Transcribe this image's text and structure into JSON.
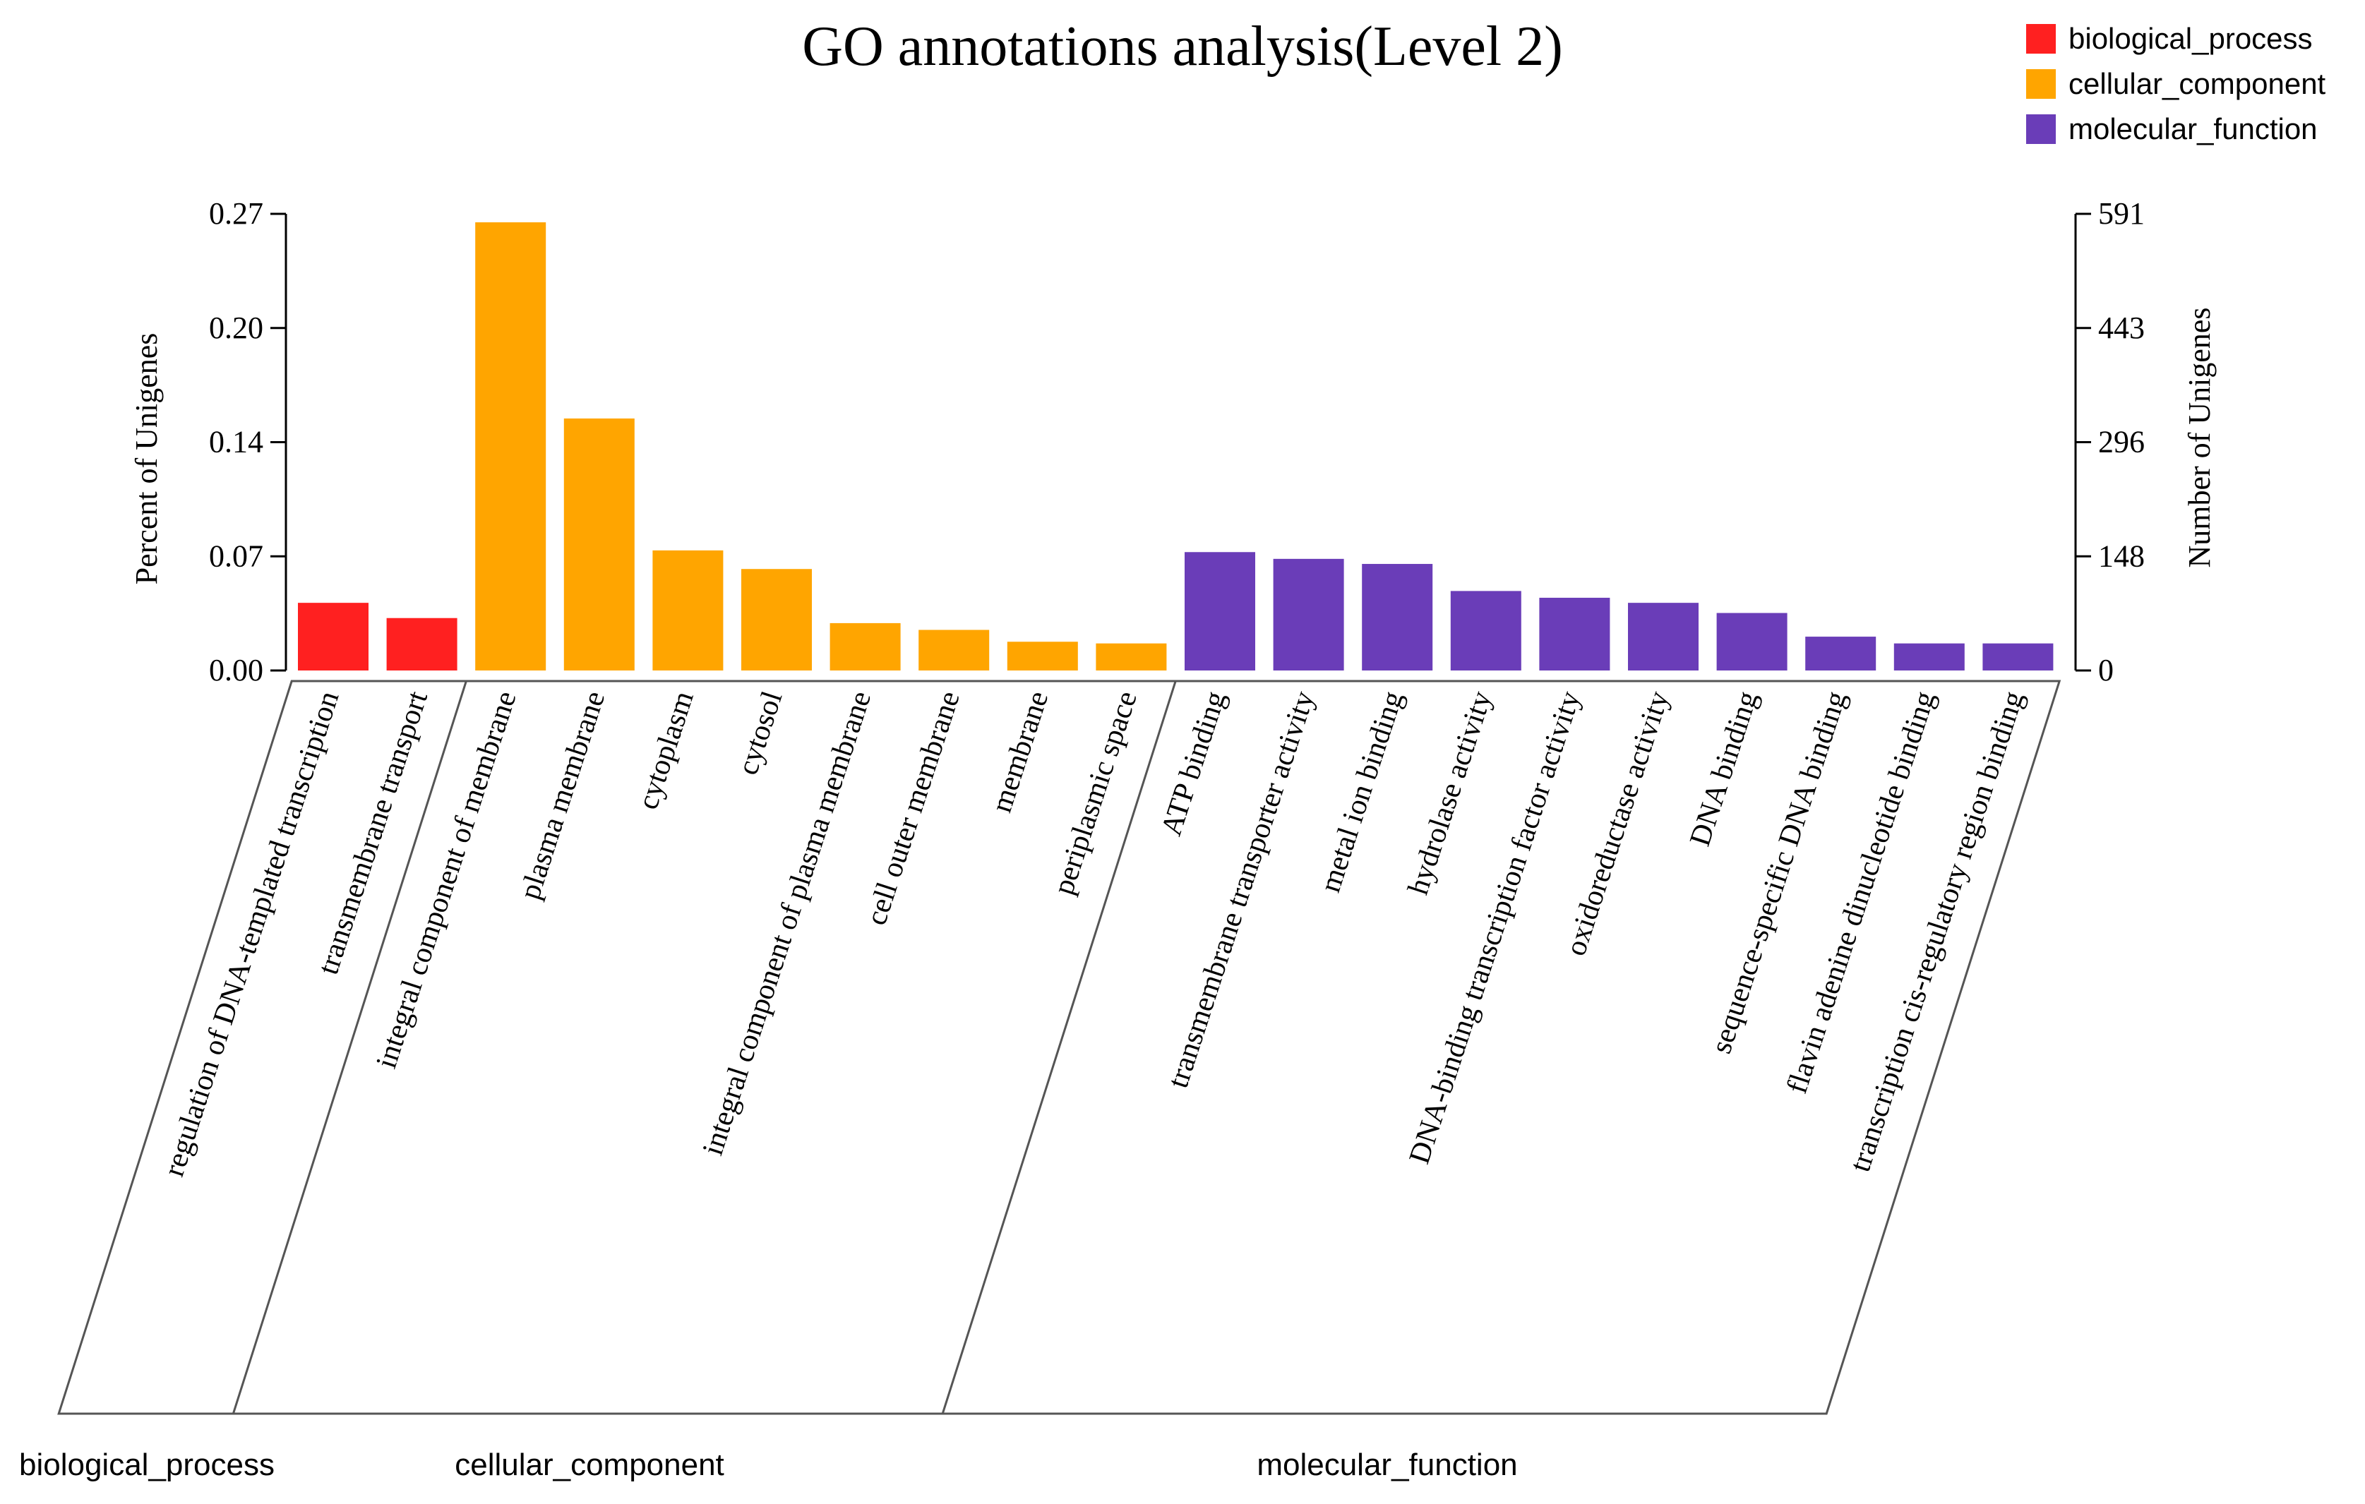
{
  "chart_data": {
    "type": "bar",
    "title": "GO annotations analysis(Level 2)",
    "ylabel_left": "Percent of Unigenes",
    "ylabel_right": "Number of Unigenes",
    "left_ticks": [
      "0.00",
      "0.07",
      "0.14",
      "0.20",
      "0.27"
    ],
    "right_ticks": [
      "0",
      "148",
      "296",
      "443",
      "591"
    ],
    "ylim": [
      0,
      0.27
    ],
    "legend_position": "top-right",
    "series": [
      {
        "name": "biological_process",
        "color": "#ff2020"
      },
      {
        "name": "cellular_component",
        "color": "#ffa500"
      },
      {
        "name": "molecular_function",
        "color": "#6a3db8"
      }
    ],
    "categories": [
      "regulation of DNA-templated transcription",
      "transmembrane transport",
      "integral component of membrane",
      "plasma membrane",
      "cytoplasm",
      "cytosol",
      "integral component of plasma membrane",
      "cell outer membrane",
      "membrane",
      "periplasmic space",
      "ATP binding",
      "transmembrane transporter activity",
      "metal ion binding",
      "hydrolase activity",
      "DNA-binding transcription factor activity",
      "oxidoreductase activity",
      "DNA binding",
      "sequence-specific DNA binding",
      "flavin adenine dinucleotide binding",
      "transcription cis-regulatory region binding"
    ],
    "groups": [
      "biological_process",
      "biological_process",
      "cellular_component",
      "cellular_component",
      "cellular_component",
      "cellular_component",
      "cellular_component",
      "cellular_component",
      "cellular_component",
      "cellular_component",
      "molecular_function",
      "molecular_function",
      "molecular_function",
      "molecular_function",
      "molecular_function",
      "molecular_function",
      "molecular_function",
      "molecular_function",
      "molecular_function",
      "molecular_function"
    ],
    "values": [
      0.04,
      0.031,
      0.265,
      0.149,
      0.071,
      0.06,
      0.028,
      0.024,
      0.017,
      0.016,
      0.07,
      0.066,
      0.063,
      0.047,
      0.043,
      0.04,
      0.034,
      0.02,
      0.016,
      0.016
    ],
    "group_labels": [
      "biological_process",
      "cellular_component",
      "molecular_function"
    ]
  }
}
